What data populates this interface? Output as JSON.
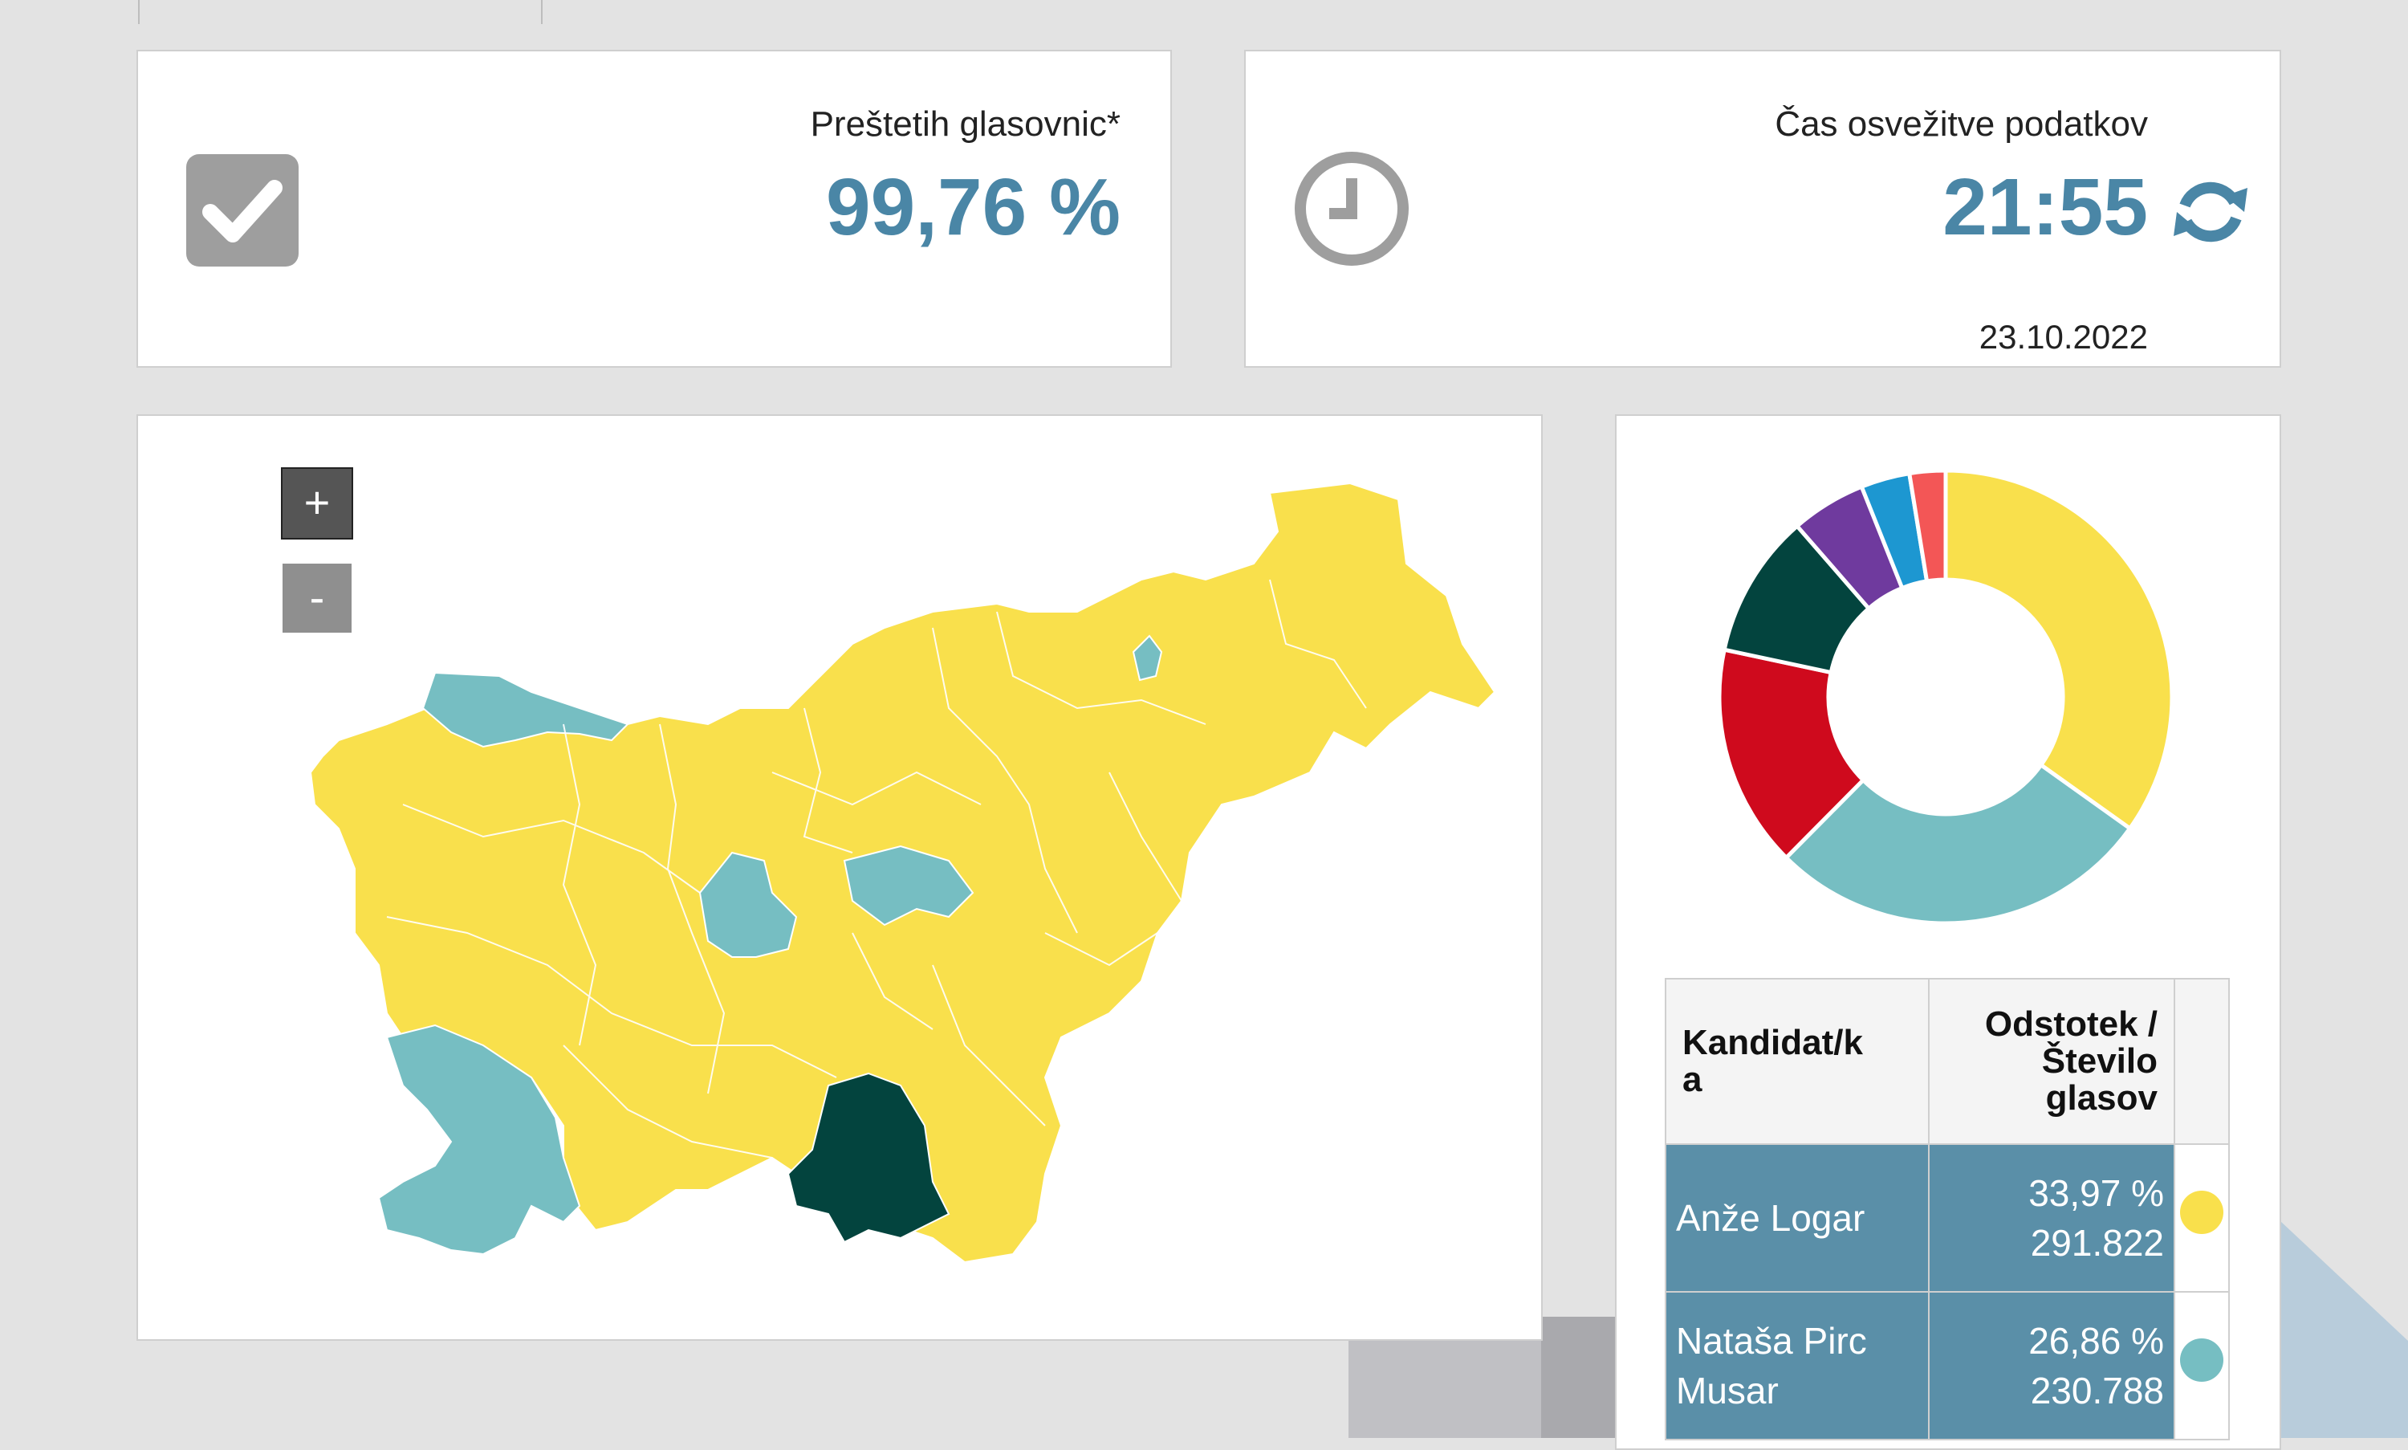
{
  "counted": {
    "label": "Preštetih glasovnic*",
    "value": "99,76 %"
  },
  "refresh": {
    "label": "Čas osvežitve podatkov",
    "time": "21:55",
    "date": "23.10.2022"
  },
  "map": {
    "zoom_in_label": "+",
    "zoom_out_label": "-"
  },
  "table": {
    "headers": {
      "candidate": "Kandidat/k a",
      "percent_line1": "Odstotek /",
      "percent_line2": "Število",
      "percent_line3": "glasov"
    },
    "rows": [
      {
        "name_line1": "Anže Logar",
        "name_line2": "",
        "percent": "33,97 %",
        "votes": "291.822",
        "color": "#f9e04c"
      },
      {
        "name_line1": "Nataša Pirc",
        "name_line2": "Musar",
        "percent": "26,86 %",
        "votes": "230.788",
        "color": "#76bec2"
      }
    ]
  },
  "chart_data": {
    "type": "pie",
    "style": "donut",
    "values": [
      33.97,
      26.86,
      15.5,
      10.0,
      5.2,
      3.4,
      2.5
    ],
    "colors": [
      "#f9e04c",
      "#76bec2",
      "#cf0a1d",
      "#03443e",
      "#6f3a9e",
      "#1d97d1",
      "#f35656"
    ]
  },
  "colors": {
    "accent": "#4a86a6",
    "table_row": "#5a8fa8",
    "map_yellow": "#f9e04c",
    "map_teal": "#76bec2",
    "map_dark": "#03443e"
  }
}
